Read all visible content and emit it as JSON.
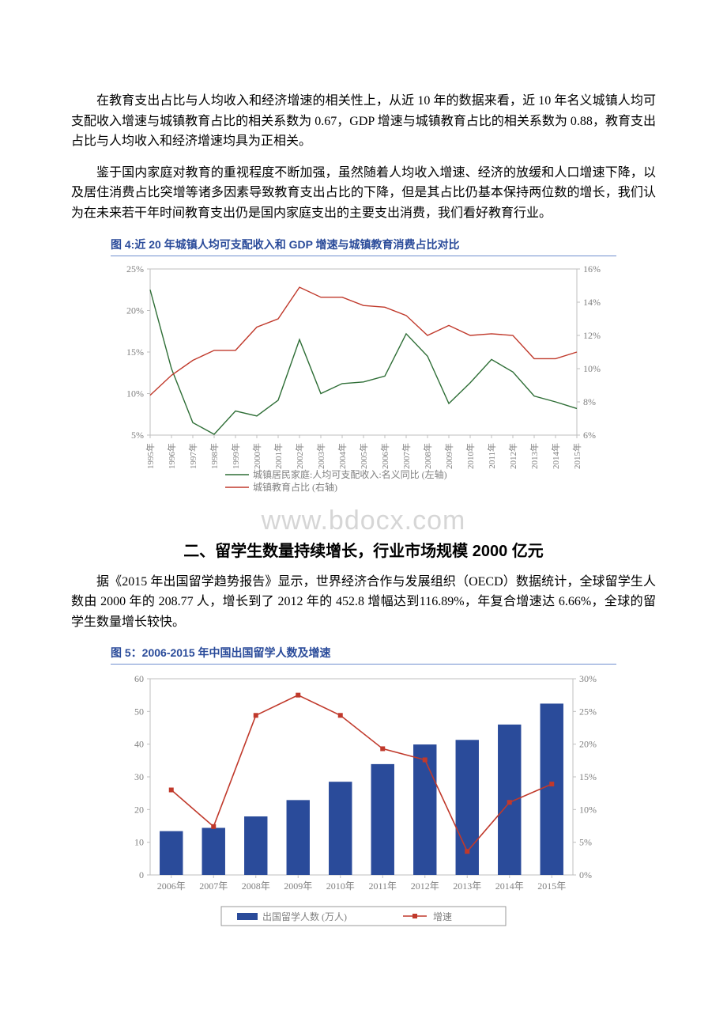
{
  "para1": "在教育支出占比与人均收入和经济增速的相关性上，从近 10 年的数据来看，近 10 年名义城镇人均可支配收入增速与城镇教育占比的相关系数为 0.67，GDP 增速与城镇教育占比的相关系数为 0.88，教育支出占比与人均收入和经济增速均具为正相关。",
  "para2": "鉴于国内家庭对教育的重视程度不断加强，虽然随着人均收入增速、经济的放缓和人口增速下降，以及居住消费占比突增等诸多因素导致教育支出占比的下降，但是其占比仍基本保持两位数的增长，我们认为在未来若干年时间教育支出仍是国内家庭支出的主要支出消费，我们看好教育行业。",
  "fig4_title": "图 4:近 20 年城镇人均可支配收入和 GDP 增速与城镇教育消费占比对比",
  "watermark": "www.bdocx.com",
  "section2_title": "二、留学生数量持续增长，行业市场规模 2000 亿元",
  "para3": "据《2015 年出国留学趋势报告》显示，世界经济合作与发展组织（OECD）数据统计，全球留学生人数由 2000 年的 208.77 人，增长到了 2012 年的 452.8 增幅达到116.89%，年复合增速达 6.66%，全球的留学生数量增长较快。",
  "fig5_title": "图 5：2006-2015 年中国出国留学人数及增速",
  "chart4": {
    "type": "line-dual-axis",
    "years": [
      "1995年",
      "1996年",
      "1997年",
      "1998年",
      "1999年",
      "2000年",
      "2001年",
      "2002年",
      "2003年",
      "2004年",
      "2005年",
      "2006年",
      "2007年",
      "2008年",
      "2009年",
      "2010年",
      "2011年",
      "2012年",
      "2013年",
      "2014年",
      "2015年"
    ],
    "y_left": {
      "min": 5,
      "max": 25,
      "step": 5,
      "suffix": "%"
    },
    "y_right": {
      "min": 6,
      "max": 16,
      "step": 2,
      "suffix": "%"
    },
    "series": [
      {
        "name": "城镇居民家庭:人均可支配收入:名义同比 (左轴)",
        "axis": "left",
        "color": "#2e6e36",
        "values": [
          22.5,
          13.0,
          6.5,
          5.1,
          7.9,
          7.3,
          9.2,
          16.5,
          10.0,
          11.2,
          11.4,
          12.1,
          17.2,
          14.5,
          8.8,
          11.3,
          14.1,
          12.6,
          9.7,
          9.0,
          8.2
        ]
      },
      {
        "name": "城镇教育占比 (右轴)",
        "axis": "right",
        "color": "#c0392b",
        "values": [
          8.4,
          9.6,
          10.5,
          11.1,
          11.1,
          12.5,
          13.0,
          14.9,
          14.3,
          14.3,
          13.8,
          13.7,
          13.2,
          12.0,
          12.6,
          12.0,
          12.1,
          12.0,
          10.6,
          10.6,
          11.0
        ]
      }
    ],
    "line_width": 1.4,
    "border_color": "#bfbfbf",
    "grid_color": "#bfbfbf",
    "bg": "#ffffff",
    "label_fontsize": 12
  },
  "chart5": {
    "type": "bar-line-dual-axis",
    "years": [
      "2006年",
      "2007年",
      "2008年",
      "2009年",
      "2010年",
      "2011年",
      "2012年",
      "2013年",
      "2014年",
      "2015年"
    ],
    "y_left": {
      "min": 0,
      "max": 60,
      "step": 10,
      "suffix": ""
    },
    "y_right": {
      "min": 0,
      "max": 30,
      "step": 5,
      "suffix": "%"
    },
    "bars": {
      "name": "出国留学人数 (万人)",
      "color": "#2a4b9a",
      "width": 0.55,
      "values": [
        13.4,
        14.4,
        17.9,
        22.9,
        28.5,
        33.9,
        39.9,
        41.3,
        46.0,
        52.4
      ]
    },
    "line": {
      "name": "增速",
      "color": "#c0392b",
      "marker": "square",
      "marker_size": 6,
      "values": [
        13.0,
        7.4,
        24.4,
        27.5,
        24.4,
        19.3,
        17.6,
        3.6,
        11.1,
        13.9
      ]
    },
    "border_color": "#bfbfbf",
    "grid_color": "#bfbfbf",
    "bg": "#ffffff",
    "label_fontsize": 12,
    "legend_box_border": "#808080"
  }
}
